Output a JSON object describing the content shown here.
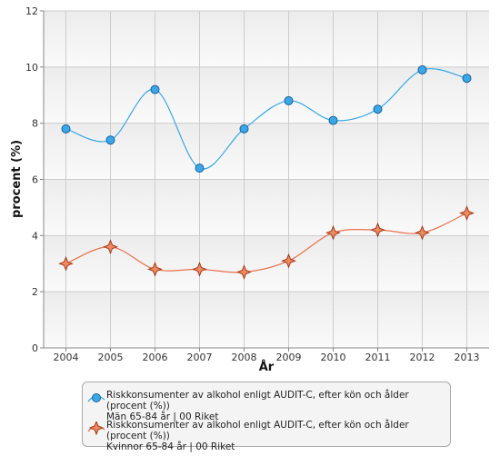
{
  "chart_data": {
    "type": "line",
    "x_label": "År",
    "y_label": "procent (%)",
    "categories": [
      "2004",
      "2005",
      "2006",
      "2007",
      "2008",
      "2009",
      "2010",
      "2011",
      "2012",
      "2013"
    ],
    "series": [
      {
        "name": "Riskkonsumenter av alkohol enligt AUDIT-C, efter kön och ålder (procent (%))\nMän 65-84 år | 00 Riket",
        "color": "#3aa8e8",
        "marker": "circle",
        "values": [
          7.8,
          7.4,
          9.2,
          6.4,
          7.8,
          8.8,
          8.1,
          8.5,
          9.9,
          9.6
        ]
      },
      {
        "name": "Riskkonsumenter av alkohol enligt AUDIT-C, efter kön och ålder (procent (%))\nKvinnor 65-84 år | 00 Riket",
        "color": "#e8704a",
        "marker": "star",
        "values": [
          3.0,
          3.6,
          2.8,
          2.8,
          2.7,
          3.1,
          4.1,
          4.2,
          4.1,
          4.8
        ]
      }
    ],
    "ylim": [
      0,
      12
    ],
    "yticks": [
      0,
      2,
      4,
      6,
      8,
      10,
      12
    ],
    "grid": true,
    "legend": "bottom"
  }
}
